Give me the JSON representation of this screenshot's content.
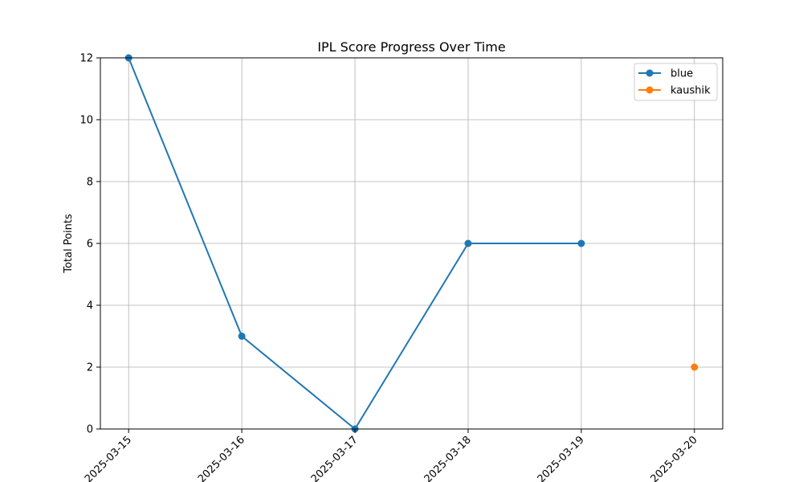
{
  "chart_data": {
    "type": "line",
    "title": "IPL Score Progress Over Time",
    "xlabel": "",
    "ylabel": "Total Points",
    "x": [
      "2025-03-15",
      "2025-03-16",
      "2025-03-17",
      "2025-03-18",
      "2025-03-19",
      "2025-03-20"
    ],
    "ylim": [
      0,
      12
    ],
    "yticks": [
      "0",
      "2",
      "4",
      "6",
      "8",
      "10",
      "12"
    ],
    "grid": true,
    "legend_position": "top-right",
    "series": [
      {
        "name": "blue",
        "color": "#1f77b4",
        "points": [
          {
            "x": "2025-03-15",
            "y": 12
          },
          {
            "x": "2025-03-16",
            "y": 3
          },
          {
            "x": "2025-03-17",
            "y": 0
          },
          {
            "x": "2025-03-18",
            "y": 6
          },
          {
            "x": "2025-03-19",
            "y": 6
          }
        ]
      },
      {
        "name": "kaushik",
        "color": "#ff7f0e",
        "points": [
          {
            "x": "2025-03-20",
            "y": 2
          }
        ]
      }
    ]
  }
}
